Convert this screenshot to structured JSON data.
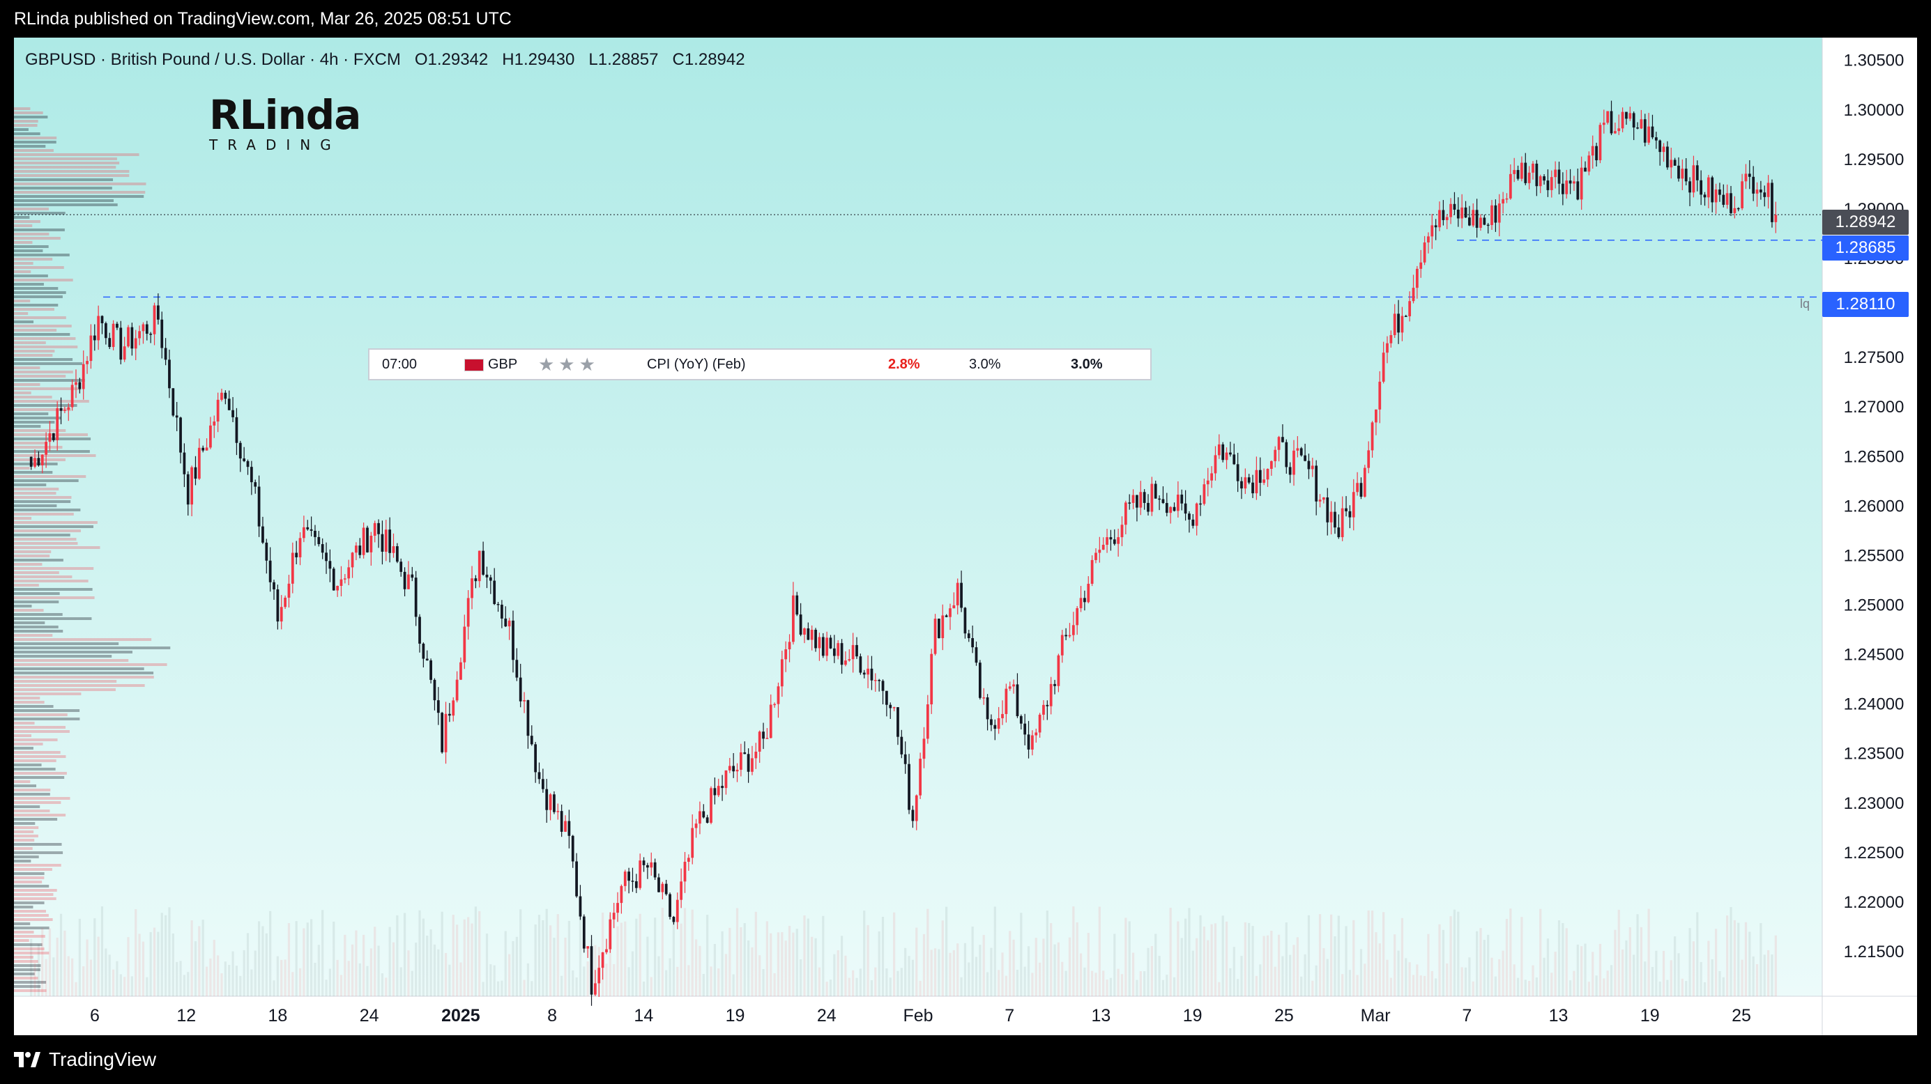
{
  "header": {
    "publisher_text": "RLinda published on TradingView.com, Mar 26, 2025 08:51 UTC"
  },
  "footer": {
    "brand": "TradingView"
  },
  "logo": {
    "line1": "RLinda",
    "line2": "TRADING"
  },
  "symbol_legend": {
    "text": "GBPUSD · British Pound / U.S. Dollar · 4h · FXCM",
    "open": "O1.29342",
    "high": "H1.29430",
    "low": "L1.28857",
    "close": "C1.28942"
  },
  "event": {
    "time": "07:00",
    "currency": "GBP",
    "stars": "★★★",
    "name": "CPI (YoY) (Feb)",
    "actual": "2.8%",
    "forecast": "3.0%",
    "previous": "3.0%",
    "actual_color": "#e8201c"
  },
  "colors": {
    "up": "#f23645",
    "down": "#131722",
    "bg_top": "#aeeae6",
    "bg_bottom": "#ecfbfa",
    "level_line": "#2962ff",
    "current_tag": "#4a4d56",
    "level_tag": "#2962ff"
  },
  "price_tags": {
    "current": "1.28942",
    "level1": "1.28685",
    "level2": "1.28110",
    "level_label": "lq"
  },
  "chart_data": {
    "type": "candlestick",
    "symbol": "GBPUSD",
    "timeframe": "4h",
    "ylim": [
      1.2105,
      1.3073
    ],
    "y_ticks": [
      "1.30500",
      "1.30000",
      "1.29500",
      "1.29000",
      "1.28500",
      "1.28000",
      "1.27500",
      "1.27000",
      "1.26500",
      "1.26000",
      "1.25500",
      "1.25000",
      "1.24500",
      "1.24000",
      "1.23500",
      "1.23000",
      "1.22500",
      "1.22000",
      "1.21500"
    ],
    "x_ticks": [
      "6",
      "12",
      "18",
      "24",
      "2025",
      "8",
      "14",
      "19",
      "24",
      "Feb",
      "7",
      "13",
      "19",
      "25",
      "Mar",
      "7",
      "13",
      "19",
      "25"
    ],
    "x_tick_bold": "2025",
    "horizontal_levels": [
      1.28685,
      1.2811
    ],
    "last_price": 1.28942,
    "anchors": [
      {
        "i": 0,
        "p": 1.264
      },
      {
        "i": 12,
        "p": 1.272
      },
      {
        "i": 18,
        "p": 1.279
      },
      {
        "i": 24,
        "p": 1.276
      },
      {
        "i": 34,
        "p": 1.279
      },
      {
        "i": 42,
        "p": 1.2615
      },
      {
        "i": 52,
        "p": 1.272
      },
      {
        "i": 60,
        "p": 1.2605
      },
      {
        "i": 66,
        "p": 1.2485
      },
      {
        "i": 72,
        "p": 1.2575
      },
      {
        "i": 82,
        "p": 1.2525
      },
      {
        "i": 92,
        "p": 1.258
      },
      {
        "i": 102,
        "p": 1.2515
      },
      {
        "i": 110,
        "p": 1.236
      },
      {
        "i": 120,
        "p": 1.2555
      },
      {
        "i": 128,
        "p": 1.2475
      },
      {
        "i": 136,
        "p": 1.2325
      },
      {
        "i": 144,
        "p": 1.226
      },
      {
        "i": 150,
        "p": 1.212
      },
      {
        "i": 158,
        "p": 1.2215
      },
      {
        "i": 165,
        "p": 1.2235
      },
      {
        "i": 172,
        "p": 1.218
      },
      {
        "i": 178,
        "p": 1.2275
      },
      {
        "i": 186,
        "p": 1.2325
      },
      {
        "i": 196,
        "p": 1.236
      },
      {
        "i": 204,
        "p": 1.2495
      },
      {
        "i": 212,
        "p": 1.2455
      },
      {
        "i": 222,
        "p": 1.2445
      },
      {
        "i": 230,
        "p": 1.241
      },
      {
        "i": 236,
        "p": 1.2285
      },
      {
        "i": 242,
        "p": 1.2475
      },
      {
        "i": 248,
        "p": 1.2515
      },
      {
        "i": 256,
        "p": 1.2375
      },
      {
        "i": 262,
        "p": 1.2415
      },
      {
        "i": 268,
        "p": 1.2355
      },
      {
        "i": 276,
        "p": 1.2455
      },
      {
        "i": 286,
        "p": 1.2555
      },
      {
        "i": 294,
        "p": 1.2595
      },
      {
        "i": 302,
        "p": 1.2615
      },
      {
        "i": 310,
        "p": 1.2585
      },
      {
        "i": 318,
        "p": 1.266
      },
      {
        "i": 326,
        "p": 1.2625
      },
      {
        "i": 334,
        "p": 1.2655
      },
      {
        "i": 342,
        "p": 1.2635
      },
      {
        "i": 350,
        "p": 1.2575
      },
      {
        "i": 356,
        "p": 1.2625
      },
      {
        "i": 362,
        "p": 1.2755
      },
      {
        "i": 368,
        "p": 1.2805
      },
      {
        "i": 374,
        "p": 1.2885
      },
      {
        "i": 382,
        "p": 1.2895
      },
      {
        "i": 390,
        "p": 1.2885
      },
      {
        "i": 398,
        "p": 1.294
      },
      {
        "i": 406,
        "p": 1.2935
      },
      {
        "i": 414,
        "p": 1.2925
      },
      {
        "i": 422,
        "p": 1.2985
      },
      {
        "i": 430,
        "p": 1.2985
      },
      {
        "i": 438,
        "p": 1.2955
      },
      {
        "i": 446,
        "p": 1.2925
      },
      {
        "i": 454,
        "p": 1.2905
      },
      {
        "i": 462,
        "p": 1.2935
      },
      {
        "i": 467,
        "p": 1.2894
      }
    ],
    "volume_profile_note": "visible range volume profile on left edge"
  }
}
